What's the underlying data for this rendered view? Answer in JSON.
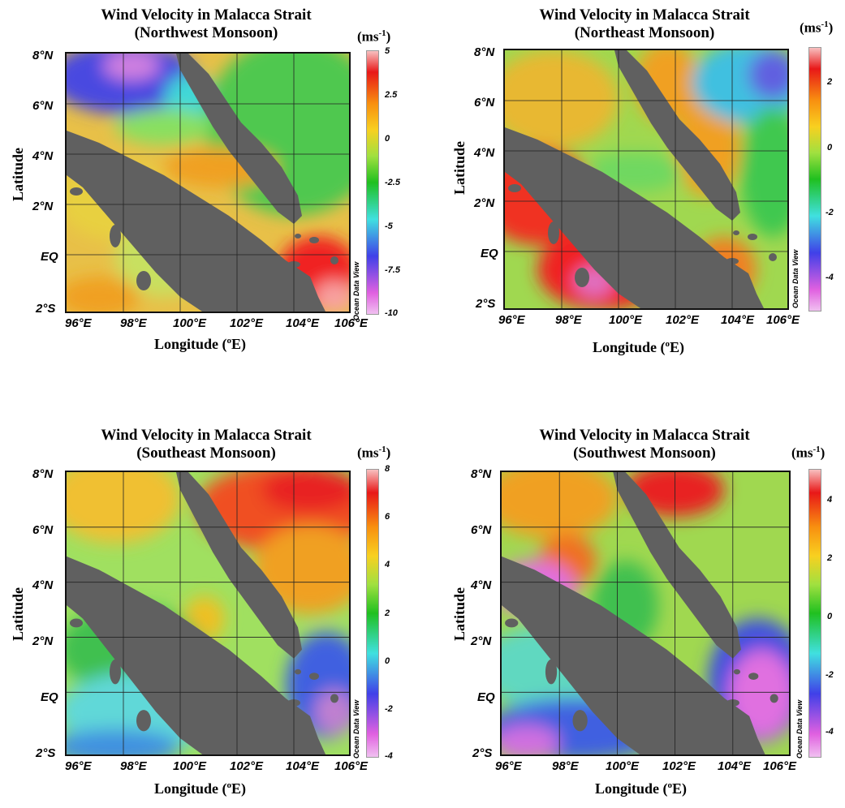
{
  "axis_labels": {
    "latitude": "Latitude",
    "longitude": "Longitude (°E)",
    "units": "(ms-1)",
    "credit": "Ocean Data View"
  },
  "lat_ticks": [
    "8°N",
    "6°N",
    "4°N",
    "2°N",
    "EQ",
    "2°S"
  ],
  "lon_ticks": [
    "96°E",
    "98°E",
    "100°E",
    "102°E",
    "104°E",
    "106°E"
  ],
  "panels": [
    {
      "title_line1": "Wind Velocity in Malacca Strait",
      "title_line2": "(Northwest Monsoon)",
      "colorbar_ticks": [
        "5",
        "2.5",
        "0",
        "-2.5",
        "-5",
        "-7.5",
        "-10"
      ],
      "colorbar_range": [
        -10,
        5
      ]
    },
    {
      "title_line1": "Wind Velocity in Malacca Strait",
      "title_line2": "(Northeast Monsoon)",
      "colorbar_ticks": [
        "2",
        "0",
        "-2",
        "-4"
      ],
      "colorbar_range": [
        -5,
        3
      ]
    },
    {
      "title_line1": "Wind Velocity in Malacca Strait",
      "title_line2": "(Southeast Monsoon)",
      "colorbar_ticks": [
        "8",
        "6",
        "4",
        "2",
        "0",
        "-2",
        "-4"
      ],
      "colorbar_range": [
        -4,
        8
      ]
    },
    {
      "title_line1": "Wind Velocity in Malacca Strait",
      "title_line2": "(Southwest Monsoon)",
      "colorbar_ticks": [
        "4",
        "2",
        "0",
        "-2",
        "-4"
      ],
      "colorbar_range": [
        -5,
        5
      ]
    }
  ],
  "colors": {
    "land": "#606060",
    "scale": [
      "#f0b8f0",
      "#e060e0",
      "#4040e8",
      "#40e0e0",
      "#20c020",
      "#a0e040",
      "#f8d020",
      "#f89010",
      "#f02020",
      "#f8a0a0"
    ]
  }
}
